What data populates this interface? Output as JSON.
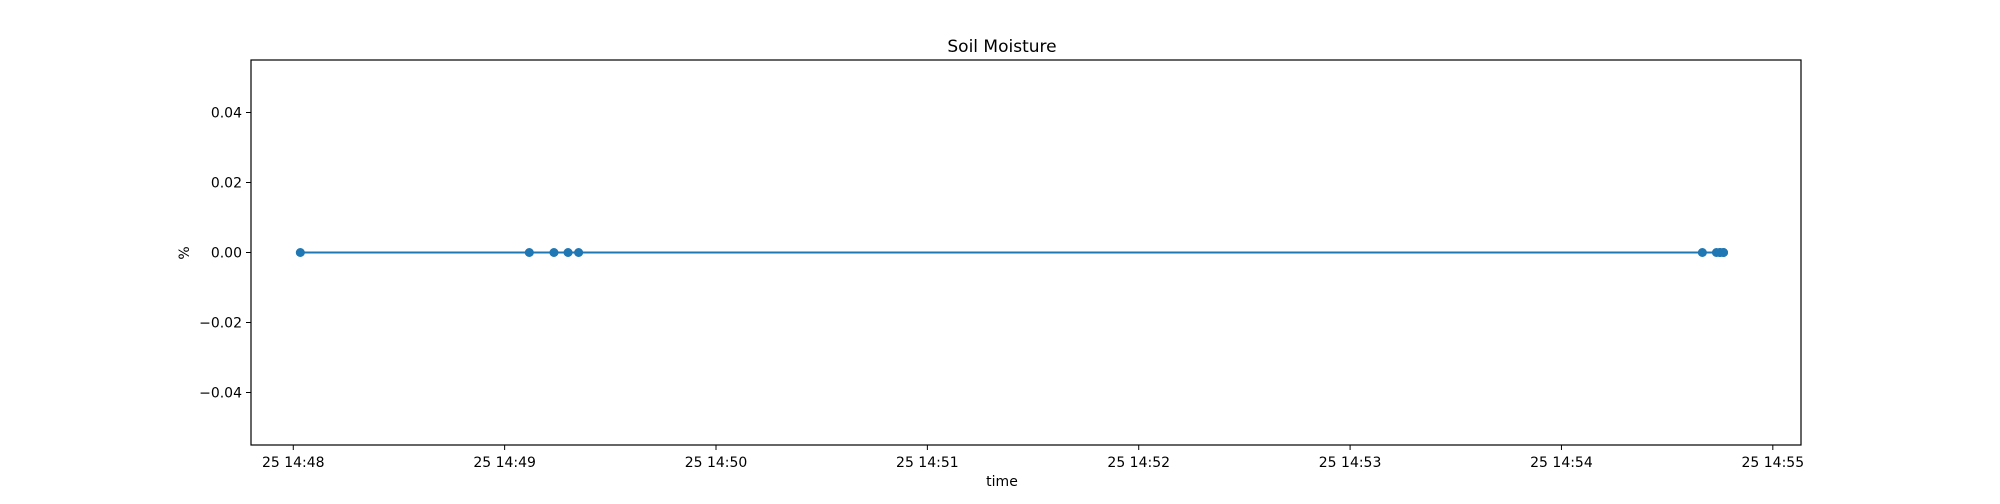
{
  "chart_data": {
    "type": "line",
    "title": "Soil Moisture",
    "xlabel": "time",
    "ylabel": "%",
    "x_tick_labels": [
      "25 14:48",
      "25 14:49",
      "25 14:50",
      "25 14:51",
      "25 14:52",
      "25 14:53",
      "25 14:54",
      "25 14:55"
    ],
    "x_tick_times": [
      "14:48:00",
      "14:49:00",
      "14:50:00",
      "14:51:00",
      "14:52:00",
      "14:53:00",
      "14:54:00",
      "14:55:00"
    ],
    "xlim": [
      "14:47:48",
      "14:55:08"
    ],
    "y_ticks": [
      -0.04,
      -0.02,
      0.0,
      0.02,
      0.04
    ],
    "y_tick_labels": [
      "−0.04",
      "−0.02",
      "0.00",
      "0.02",
      "0.04"
    ],
    "ylim": [
      -0.055,
      0.055
    ],
    "grid": false,
    "series": [
      {
        "color": "#1f77b4",
        "marker": "circle",
        "x": [
          "14:48:02",
          "14:49:07",
          "14:49:14",
          "14:49:18",
          "14:49:21",
          "14:54:40",
          "14:54:44",
          "14:54:45",
          "14:54:45",
          "14:54:46",
          "14:54:46"
        ],
        "y": [
          0,
          0,
          0,
          0,
          0,
          0,
          0,
          0,
          0,
          0,
          0
        ]
      }
    ]
  }
}
